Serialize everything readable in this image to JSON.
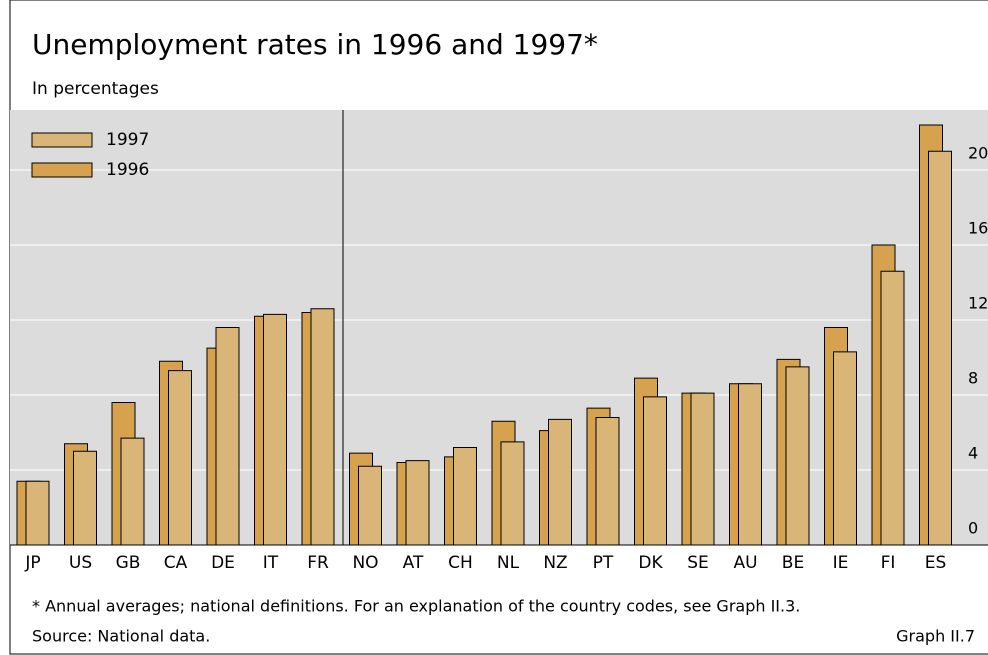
{
  "chart_data": {
    "type": "bar",
    "title": "Unemployment rates in 1996 and 1997*",
    "subtitle": "In percentages",
    "categories": [
      "JP",
      "US",
      "GB",
      "CA",
      "DE",
      "IT",
      "FR",
      "NO",
      "AT",
      "CH",
      "NL",
      "NZ",
      "PT",
      "DK",
      "SE",
      "AU",
      "BE",
      "IE",
      "FI",
      "ES"
    ],
    "series": [
      {
        "name": "1997",
        "color": "#d9b677",
        "values": [
          3.4,
          5.0,
          5.7,
          9.3,
          11.6,
          12.3,
          12.6,
          4.2,
          4.5,
          5.2,
          5.5,
          6.7,
          6.8,
          7.9,
          8.1,
          8.6,
          9.5,
          10.3,
          14.6,
          21.0
        ]
      },
      {
        "name": "1996",
        "color": "#d6a24e",
        "values": [
          3.4,
          5.4,
          7.6,
          9.8,
          10.5,
          12.2,
          12.4,
          4.9,
          4.4,
          4.7,
          6.6,
          6.1,
          7.3,
          8.9,
          8.1,
          8.6,
          9.9,
          11.6,
          16.0,
          22.4
        ]
      }
    ],
    "ylim": [
      0,
      23.2
    ],
    "yticks": [
      0,
      4,
      8,
      12,
      16,
      20
    ],
    "grid": true,
    "footnote": "* Annual averages; national definitions. For an explanation of the country codes, see Graph II.3.",
    "source": "Source: National data.",
    "graph_label": "Graph II.7"
  }
}
